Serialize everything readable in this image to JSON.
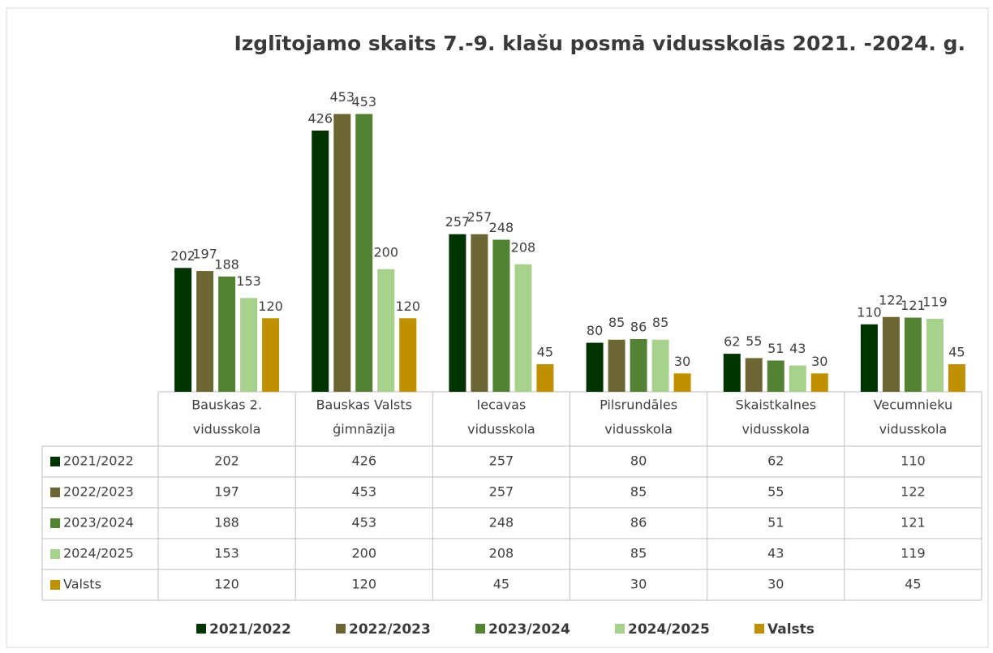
{
  "chart_data": {
    "type": "bar",
    "title": "Izglītojamo skaits 7.-9. klašu posmā vidusskolās 2021. -2024. g.",
    "categories": [
      [
        "Bauskas 2.",
        "vidusskola"
      ],
      [
        "Bauskas Valsts",
        "ģimnāzija"
      ],
      [
        "Iecavas",
        "vidusskola"
      ],
      [
        "Pilsrundāles",
        "vidusskola"
      ],
      [
        "Skaistkalnes",
        "vidusskola"
      ],
      [
        "Vecumnieku",
        "vidusskola"
      ]
    ],
    "series": [
      {
        "name": "2021/2022",
        "color": "#003300",
        "values": [
          202,
          426,
          257,
          80,
          62,
          110
        ]
      },
      {
        "name": "2022/2023",
        "color": "#6b6633",
        "values": [
          197,
          453,
          257,
          85,
          55,
          122
        ]
      },
      {
        "name": "2023/2024",
        "color": "#548235",
        "values": [
          188,
          453,
          248,
          86,
          51,
          121
        ]
      },
      {
        "name": "2024/2025",
        "color": "#a9d18e",
        "values": [
          153,
          200,
          208,
          85,
          43,
          119
        ]
      },
      {
        "name": "Valsts",
        "color": "#bf9000",
        "values": [
          120,
          120,
          45,
          30,
          30,
          45
        ]
      }
    ],
    "ylim": [
      0,
      500
    ]
  }
}
